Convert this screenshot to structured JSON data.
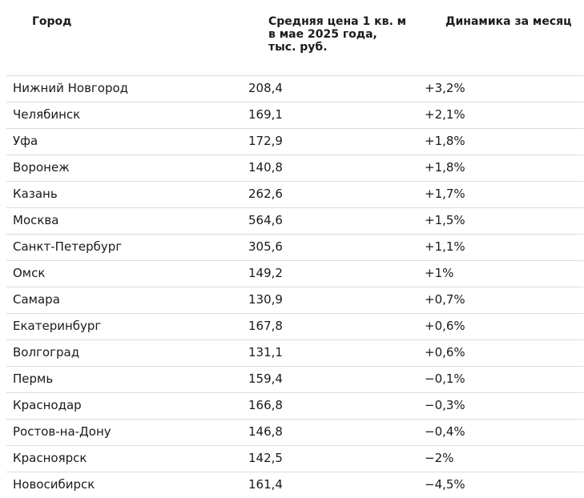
{
  "header": {
    "city": "Город",
    "price": "Средняя цена 1 кв. м в мае 2025 года, тыс. руб.",
    "dynamics": "Динамика за месяц"
  },
  "rows": [
    {
      "city": "Нижний Новгород",
      "price": "208,4",
      "dynamics": "+3,2%"
    },
    {
      "city": "Челябинск",
      "price": "169,1",
      "dynamics": "+2,1%"
    },
    {
      "city": "Уфа",
      "price": "172,9",
      "dynamics": "+1,8%"
    },
    {
      "city": "Воронеж",
      "price": "140,8",
      "dynamics": "+1,8%"
    },
    {
      "city": "Казань",
      "price": "262,6",
      "dynamics": "+1,7%"
    },
    {
      "city": "Москва",
      "price": "564,6",
      "dynamics": "+1,5%"
    },
    {
      "city": "Санкт-Петербург",
      "price": "305,6",
      "dynamics": "+1,1%"
    },
    {
      "city": "Омск",
      "price": "149,2",
      "dynamics": "+1%"
    },
    {
      "city": "Самара",
      "price": "130,9",
      "dynamics": "+0,7%"
    },
    {
      "city": "Екатеринбург",
      "price": "167,8",
      "dynamics": "+0,6%"
    },
    {
      "city": "Волгоград",
      "price": "131,1",
      "dynamics": "+0,6%"
    },
    {
      "city": "Пермь",
      "price": "159,4",
      "dynamics": "−0,1%"
    },
    {
      "city": "Краснодар",
      "price": "166,8",
      "dynamics": "−0,3%"
    },
    {
      "city": "Ростов-на-Дону",
      "price": "146,8",
      "dynamics": "−0,4%"
    },
    {
      "city": "Красноярск",
      "price": "142,5",
      "dynamics": "−2%"
    },
    {
      "city": "Новосибирск",
      "price": "161,4",
      "dynamics": "−4,5%"
    }
  ]
}
